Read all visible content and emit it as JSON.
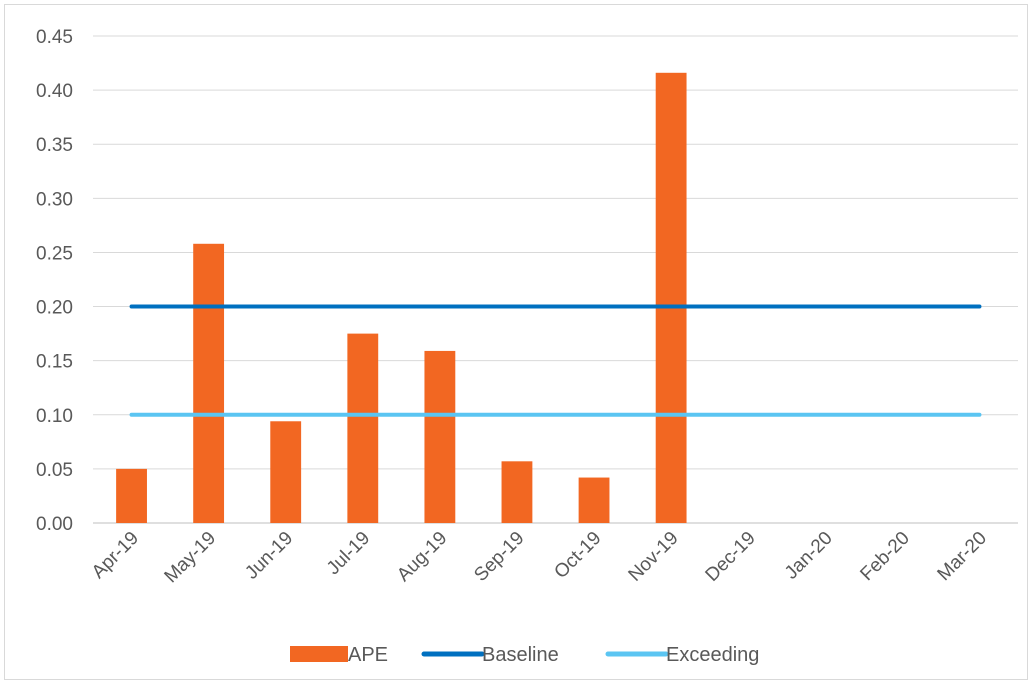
{
  "chart_data": {
    "type": "bar",
    "title": "",
    "xlabel": "",
    "ylabel": "",
    "categories": [
      "Apr-19",
      "May-19",
      "Jun-19",
      "Jul-19",
      "Aug-19",
      "Sep-19",
      "Oct-19",
      "Nov-19",
      "Dec-19",
      "Jan-20",
      "Feb-20",
      "Mar-20"
    ],
    "series": [
      {
        "name": "APE",
        "kind": "bar",
        "color": "#f26722",
        "values": [
          0.05,
          0.258,
          0.094,
          0.175,
          0.159,
          0.057,
          0.042,
          0.416,
          null,
          null,
          null,
          null
        ]
      },
      {
        "name": "Baseline",
        "kind": "line",
        "color": "#0070c0",
        "values": [
          0.2,
          0.2,
          0.2,
          0.2,
          0.2,
          0.2,
          0.2,
          0.2,
          0.2,
          0.2,
          0.2,
          0.2
        ]
      },
      {
        "name": "Exceeding",
        "kind": "line",
        "color": "#5bc5f2",
        "values": [
          0.1,
          0.1,
          0.1,
          0.1,
          0.1,
          0.1,
          0.1,
          0.1,
          0.1,
          0.1,
          0.1,
          0.1
        ]
      }
    ],
    "ylim": [
      0,
      0.45
    ],
    "yticks": [
      "0.00",
      "0.05",
      "0.10",
      "0.15",
      "0.20",
      "0.25",
      "0.30",
      "0.35",
      "0.40",
      "0.45"
    ],
    "grid": true,
    "legend": "bottom"
  }
}
